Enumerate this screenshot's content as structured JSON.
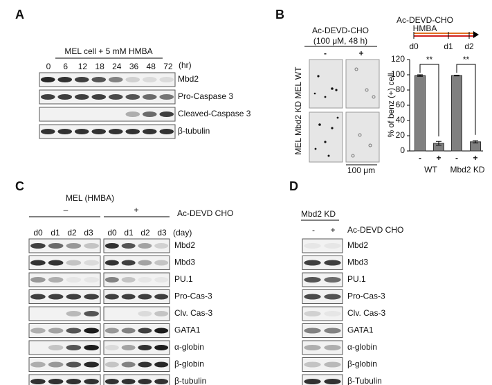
{
  "panels": {
    "a": {
      "label": "A",
      "title": "MEL cell + 5 mM HMBA",
      "lanes": [
        "0",
        "6",
        "12",
        "18",
        "24",
        "36",
        "48",
        "72"
      ],
      "lane_unit": "(hr)",
      "rows": [
        "Mbd2",
        "Pro-Caspase  3",
        "Cleaved-Caspase  3",
        "β-tubulin"
      ]
    },
    "b": {
      "label": "B",
      "treatment": "Ac-DEVD-CHO",
      "dose": "(100 μM, 48 h)",
      "columns": [
        "-",
        "+"
      ],
      "row_label": "MEL Mbd2 KD MEL WT",
      "scale_bar": "100 μm",
      "timeline": {
        "labels": [
          "Ac-DEVD-CHO",
          "HMBA"
        ],
        "days": [
          "d0",
          "d1",
          "d2"
        ]
      },
      "significance": [
        "**",
        "**"
      ]
    },
    "c": {
      "label": "C",
      "title": "MEL (HMBA)",
      "treatment": "Ac-DEVD CHO",
      "conditions": [
        "–",
        "+"
      ],
      "lanes": [
        "d0",
        "d1",
        "d2",
        "d3",
        "d0",
        "d1",
        "d2",
        "d3"
      ],
      "lane_unit": "(day)",
      "rows": [
        "Mbd2",
        "Mbd3",
        "PU.1",
        "Pro-Cas-3",
        "Clv.  Cas-3",
        "GATA1",
        "α-globin",
        "β-globin",
        "β-tubulin"
      ]
    },
    "d": {
      "label": "D",
      "title": "Mbd2  KD",
      "treatment": "Ac-DEVD CHO",
      "conditions": [
        "-",
        "+"
      ],
      "rows": [
        "Mbd2",
        "Mbd3",
        "PU.1",
        "Pro-Cas-3",
        "Clv.  Cas-3",
        "GATA1",
        "α-globin",
        "β-globin",
        "β-Tubulin"
      ]
    }
  },
  "chart_data": {
    "type": "bar",
    "ylabel": "% of benz (+) cell",
    "categories": [
      "-",
      "+",
      "-",
      "+"
    ],
    "groups": [
      "WT",
      "Mbd2  KD"
    ],
    "values": [
      99,
      10,
      99,
      12
    ],
    "errors": [
      1,
      2.5,
      0.5,
      1.5
    ],
    "color": "#808080",
    "ylim": [
      0,
      120
    ],
    "yticks": [
      0,
      20,
      40,
      60,
      80,
      100,
      120
    ]
  }
}
